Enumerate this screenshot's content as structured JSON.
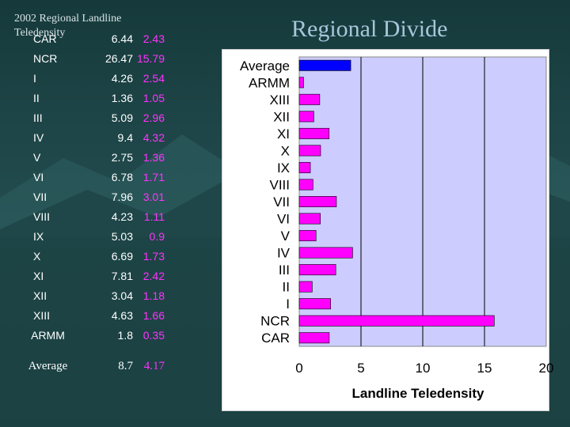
{
  "slide": {
    "title": "Regional  Divide",
    "table_title": "2002   Regional Landline Teledensity"
  },
  "table": {
    "rows": [
      {
        "region": "CAR",
        "v1": "6.44",
        "v2": "2.43"
      },
      {
        "region": "NCR",
        "v1": "26.47",
        "v2": "15.79"
      },
      {
        "region": "I",
        "v1": "4.26",
        "v2": "2.54"
      },
      {
        "region": "II",
        "v1": "1.36",
        "v2": "1.05"
      },
      {
        "region": "III",
        "v1": "5.09",
        "v2": "2.96"
      },
      {
        "region": "IV",
        "v1": "9.4",
        "v2": "4.32"
      },
      {
        "region": "V",
        "v1": "2.75",
        "v2": "1.36"
      },
      {
        "region": "VI",
        "v1": "6.78",
        "v2": "1.71"
      },
      {
        "region": "VII",
        "v1": "7.96",
        "v2": "3.01"
      },
      {
        "region": "VIII",
        "v1": "4.23",
        "v2": "1.11"
      },
      {
        "region": "IX",
        "v1": "5.03",
        "v2": "0.9"
      },
      {
        "region": "X",
        "v1": "6.69",
        "v2": "1.73"
      },
      {
        "region": "XI",
        "v1": "7.81",
        "v2": "2.42"
      },
      {
        "region": "XII",
        "v1": "3.04",
        "v2": "1.18"
      },
      {
        "region": "XIII",
        "v1": "4.63",
        "v2": "1.66"
      },
      {
        "region": "ARMM",
        "v1": "1.8",
        "v2": "0.35"
      }
    ],
    "average": {
      "region": "Average",
      "v1": "8.7",
      "v2": "4.17"
    }
  },
  "chart_data": {
    "type": "bar",
    "orientation": "horizontal",
    "categories": [
      "Average",
      "ARMM",
      "XIII",
      "XII",
      "XI",
      "X",
      "IX",
      "VIII",
      "VII",
      "VI",
      "V",
      "IV",
      "III",
      "II",
      "I",
      "NCR",
      "CAR"
    ],
    "values": [
      4.17,
      0.35,
      1.66,
      1.18,
      2.42,
      1.73,
      0.9,
      1.11,
      3.01,
      1.71,
      1.36,
      4.32,
      2.96,
      1.05,
      2.54,
      15.79,
      2.43
    ],
    "xlabel": "Landline Teledensity",
    "ylabel": "",
    "xlim": [
      0,
      20
    ],
    "x_ticks": [
      0,
      5,
      10,
      15,
      20
    ],
    "grid": "vertical",
    "colors": {
      "highlight": "#0000ff",
      "bars": "#ff00ff",
      "plot_area": "#ccccff",
      "grid": "#000000"
    }
  }
}
